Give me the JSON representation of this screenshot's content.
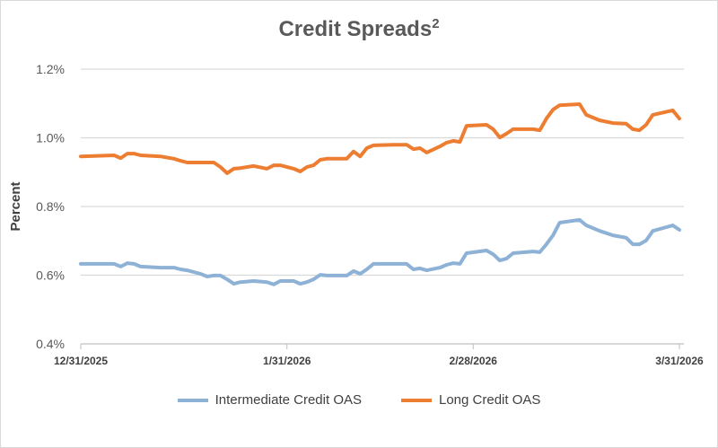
{
  "chart_data": {
    "type": "line",
    "title": "Credit Spreads",
    "title_superscript": "2",
    "xlabel": "",
    "ylabel": "Percent",
    "ylim": [
      0.4,
      1.2
    ],
    "yticks": [
      "0.4%",
      "0.6%",
      "0.8%",
      "1.0%",
      "1.2%"
    ],
    "ytick_values": [
      0.4,
      0.6,
      0.8,
      1.0,
      1.2
    ],
    "xticks": [
      "12/31/2025",
      "1/31/2026",
      "2/28/2026",
      "3/31/2026"
    ],
    "xtick_days": [
      0,
      31,
      59,
      90
    ],
    "x_unit": "days since 12/31/2025",
    "grid": true,
    "legend_position": "bottom",
    "x": [
      0,
      5,
      6,
      7,
      8,
      9,
      12,
      14,
      15,
      16,
      18,
      19,
      20,
      21,
      22,
      23,
      24,
      26,
      28,
      29,
      30,
      32,
      33,
      34,
      35,
      36,
      37,
      40,
      41,
      42,
      43,
      44,
      47,
      49,
      50,
      51,
      52,
      54,
      55,
      56,
      57,
      58,
      61,
      62,
      63,
      64,
      65,
      68,
      69,
      70,
      71,
      72,
      75,
      76,
      78,
      80,
      82,
      83,
      84,
      85,
      86,
      89,
      90
    ],
    "series": [
      {
        "name": "Intermediate Credit OAS",
        "color": "#8eb1d6",
        "values": [
          0.633,
          0.633,
          0.625,
          0.635,
          0.633,
          0.625,
          0.622,
          0.622,
          0.617,
          0.614,
          0.604,
          0.596,
          0.599,
          0.599,
          0.588,
          0.575,
          0.58,
          0.583,
          0.58,
          0.573,
          0.583,
          0.583,
          0.575,
          0.58,
          0.588,
          0.601,
          0.599,
          0.599,
          0.612,
          0.604,
          0.617,
          0.633,
          0.633,
          0.633,
          0.617,
          0.62,
          0.614,
          0.622,
          0.63,
          0.635,
          0.633,
          0.664,
          0.672,
          0.661,
          0.643,
          0.648,
          0.664,
          0.669,
          0.667,
          0.69,
          0.716,
          0.753,
          0.761,
          0.745,
          0.729,
          0.716,
          0.709,
          0.69,
          0.69,
          0.701,
          0.729,
          0.745,
          0.732
        ]
      },
      {
        "name": "Long Credit OAS",
        "color": "#ed7d31",
        "values": [
          0.946,
          0.949,
          0.941,
          0.954,
          0.954,
          0.949,
          0.946,
          0.939,
          0.933,
          0.928,
          0.928,
          0.928,
          0.928,
          0.915,
          0.897,
          0.91,
          0.912,
          0.918,
          0.91,
          0.92,
          0.92,
          0.91,
          0.902,
          0.915,
          0.92,
          0.936,
          0.939,
          0.939,
          0.96,
          0.946,
          0.97,
          0.978,
          0.98,
          0.98,
          0.967,
          0.97,
          0.957,
          0.975,
          0.986,
          0.991,
          0.988,
          1.035,
          1.038,
          1.025,
          1.001,
          1.012,
          1.025,
          1.025,
          1.022,
          1.056,
          1.082,
          1.095,
          1.098,
          1.067,
          1.051,
          1.043,
          1.041,
          1.025,
          1.022,
          1.038,
          1.067,
          1.08,
          1.056
        ]
      }
    ]
  }
}
